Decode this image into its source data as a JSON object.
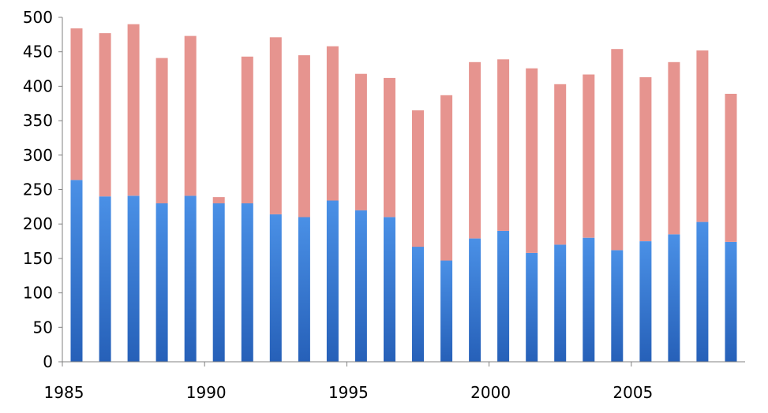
{
  "chart_data": {
    "type": "bar",
    "stacked": true,
    "title": "",
    "xlabel": "",
    "ylabel": "",
    "ylim": [
      0,
      500
    ],
    "yticks": [
      0,
      50,
      100,
      150,
      200,
      250,
      300,
      350,
      400,
      450,
      500
    ],
    "x": [
      1985,
      1986,
      1987,
      1988,
      1989,
      1990,
      1991,
      1992,
      1993,
      1994,
      1995,
      1996,
      1997,
      1998,
      1999,
      2000,
      2001,
      2002,
      2003,
      2004,
      2005,
      2006,
      2007,
      2008
    ],
    "xtick_labels": [
      "1985",
      "1990",
      "1995",
      "2000",
      "2005"
    ],
    "grid": false,
    "legend": "none",
    "series": [
      {
        "color": "#3a7fd6",
        "values": [
          264,
          240,
          241,
          230,
          241,
          230,
          230,
          214,
          210,
          234,
          220,
          210,
          167,
          147,
          179,
          190,
          158,
          170,
          180,
          162,
          175,
          185,
          203,
          174
        ]
      },
      {
        "color": "#e6948f",
        "values": [
          220,
          237,
          249,
          211,
          232,
          9,
          213,
          257,
          235,
          224,
          198,
          202,
          198,
          240,
          256,
          249,
          268,
          233,
          237,
          292,
          238,
          250,
          249,
          215
        ]
      }
    ]
  }
}
